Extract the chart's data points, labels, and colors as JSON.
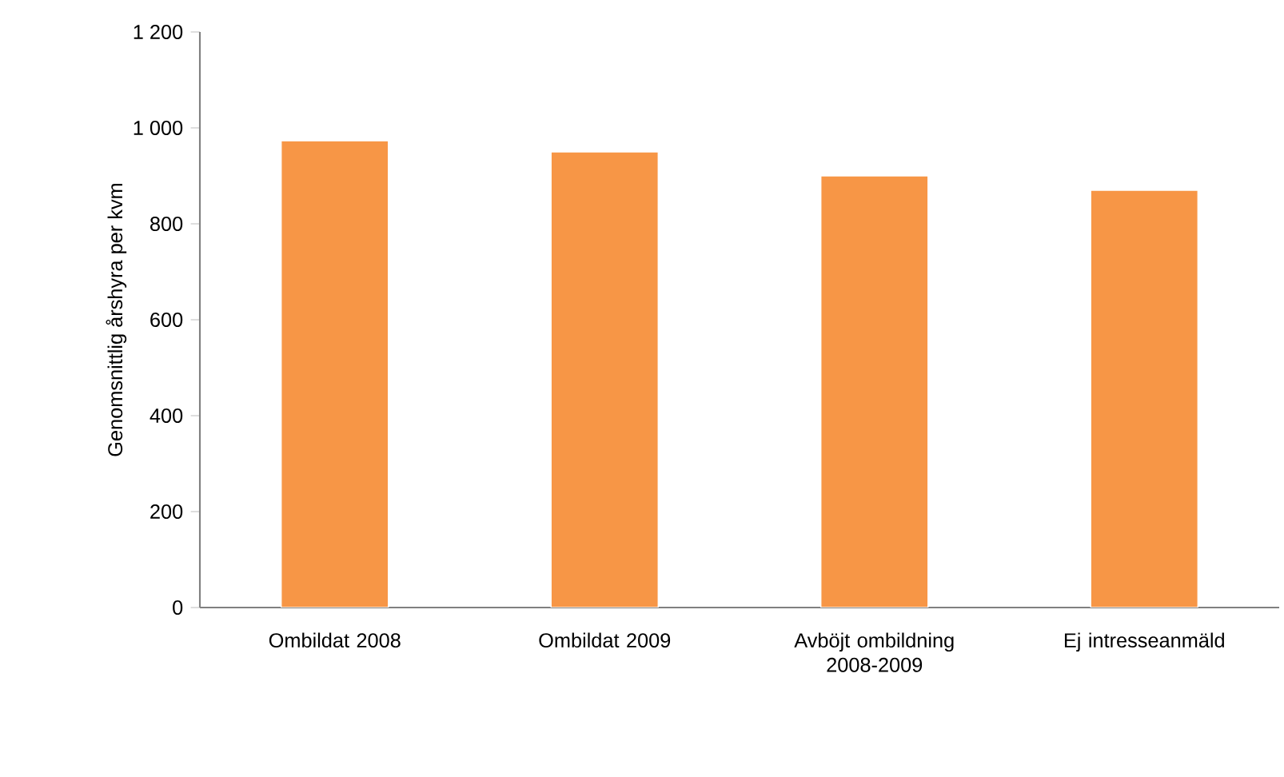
{
  "chart_data": {
    "type": "bar",
    "ylabel": "Genomsnittlig årshyra per kvm",
    "categories": [
      "Ombildat 2008",
      "Ombildat 2009",
      "Avböjt ombildning 2008-2009",
      "Ej intresseanmäld"
    ],
    "values": [
      973,
      950,
      900,
      870
    ],
    "color": "#f79646",
    "ylim": [
      0,
      1200
    ],
    "yticks": [
      0,
      200,
      400,
      600,
      800,
      {
        "value": 1000,
        "label": "1 000"
      },
      {
        "value": 1200,
        "label": "1 200"
      }
    ],
    "grid": false
  }
}
